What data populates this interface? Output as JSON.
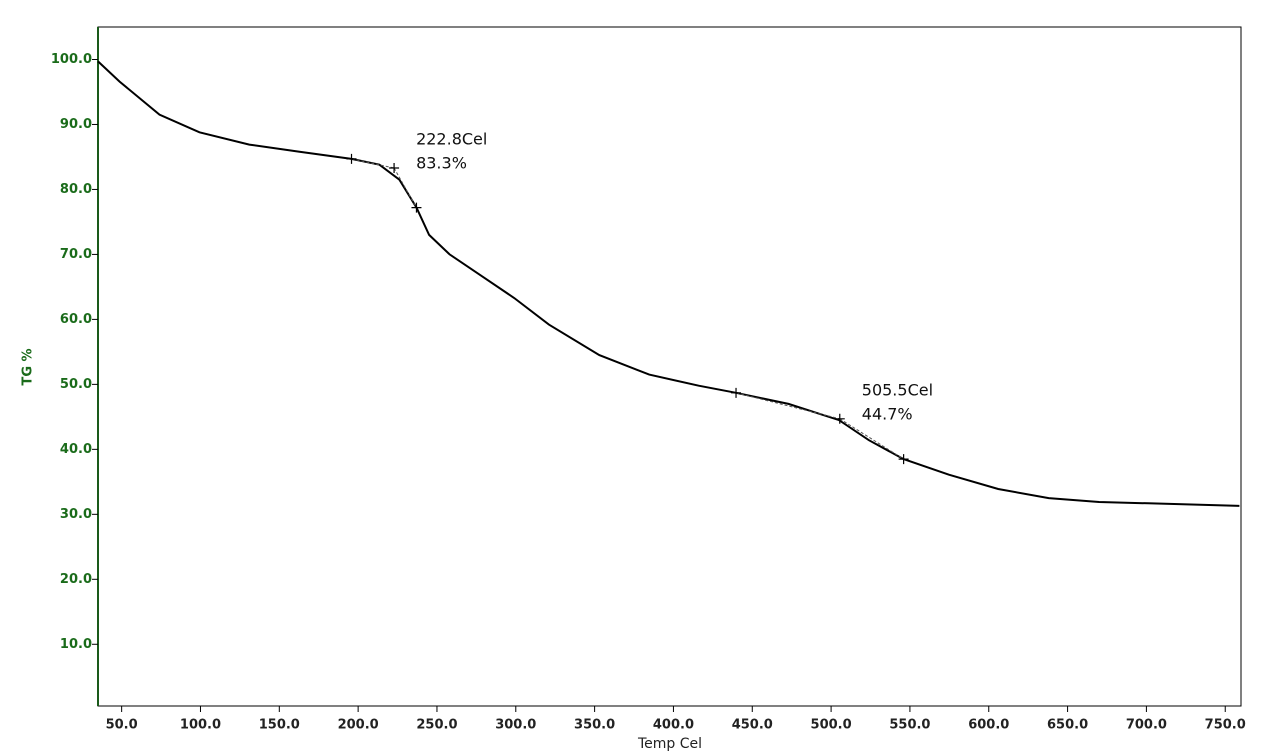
{
  "chart_data": {
    "type": "line",
    "xlabel": "Temp Cel",
    "ylabel": "TG %",
    "xlim": [
      35,
      760
    ],
    "ylim": [
      0.5,
      105
    ],
    "xticks": [
      {
        "value": 50,
        "label": "50.0"
      },
      {
        "value": 100,
        "label": "100.0"
      },
      {
        "value": 150,
        "label": "150.0"
      },
      {
        "value": 200,
        "label": "200.0"
      },
      {
        "value": 250,
        "label": "250.0"
      },
      {
        "value": 300,
        "label": "300.0"
      },
      {
        "value": 350,
        "label": "350.0"
      },
      {
        "value": 400,
        "label": "400.0"
      },
      {
        "value": 450,
        "label": "450.0"
      },
      {
        "value": 500,
        "label": "500.0"
      },
      {
        "value": 550,
        "label": "550.0"
      },
      {
        "value": 600,
        "label": "600.0"
      },
      {
        "value": 650,
        "label": "650.0"
      },
      {
        "value": 700,
        "label": "700.0"
      },
      {
        "value": 750,
        "label": "750.0"
      }
    ],
    "yticks": [
      {
        "value": 10,
        "label": "10.0"
      },
      {
        "value": 20,
        "label": "20.0"
      },
      {
        "value": 30,
        "label": "30.0"
      },
      {
        "value": 40,
        "label": "40.0"
      },
      {
        "value": 50,
        "label": "50.0"
      },
      {
        "value": 60,
        "label": "60.0"
      },
      {
        "value": 70,
        "label": "70.0"
      },
      {
        "value": 80,
        "label": "80.0"
      },
      {
        "value": 90,
        "label": "90.0"
      },
      {
        "value": 100,
        "label": "100.0"
      }
    ],
    "series": [
      {
        "color": "#000000",
        "x": [
          35,
          48.7,
          74,
          99.4,
          131,
          162.8,
          195.8,
          213.5,
          226.2,
          237,
          245,
          258,
          277,
          299,
          321,
          353,
          384.6,
          416,
          439.7,
          473,
          505,
          524,
          546,
          574.7,
          606,
          638,
          670,
          701,
          759
        ],
        "values": [
          99.7,
          96.6,
          91.5,
          88.8,
          86.9,
          85.8,
          84.7,
          83.8,
          81.5,
          77.2,
          73.0,
          70.0,
          66.9,
          63.3,
          59.2,
          54.5,
          51.5,
          49.8,
          48.7,
          47.0,
          44.5,
          41.4,
          38.5,
          36.1,
          33.9,
          32.5,
          31.9,
          31.7,
          31.3
        ]
      }
    ],
    "annotations": [
      {
        "lines": [
          "222.8Cel",
          "83.3%"
        ],
        "x": [
          195.8,
          222.8,
          237
        ],
        "y": [
          84.7,
          83.3,
          77.2
        ]
      },
      {
        "lines": [
          "505.5Cel",
          "44.7%"
        ],
        "x": [
          439.7,
          505.5,
          546
        ],
        "y": [
          48.7,
          44.7,
          38.5
        ]
      }
    ]
  }
}
